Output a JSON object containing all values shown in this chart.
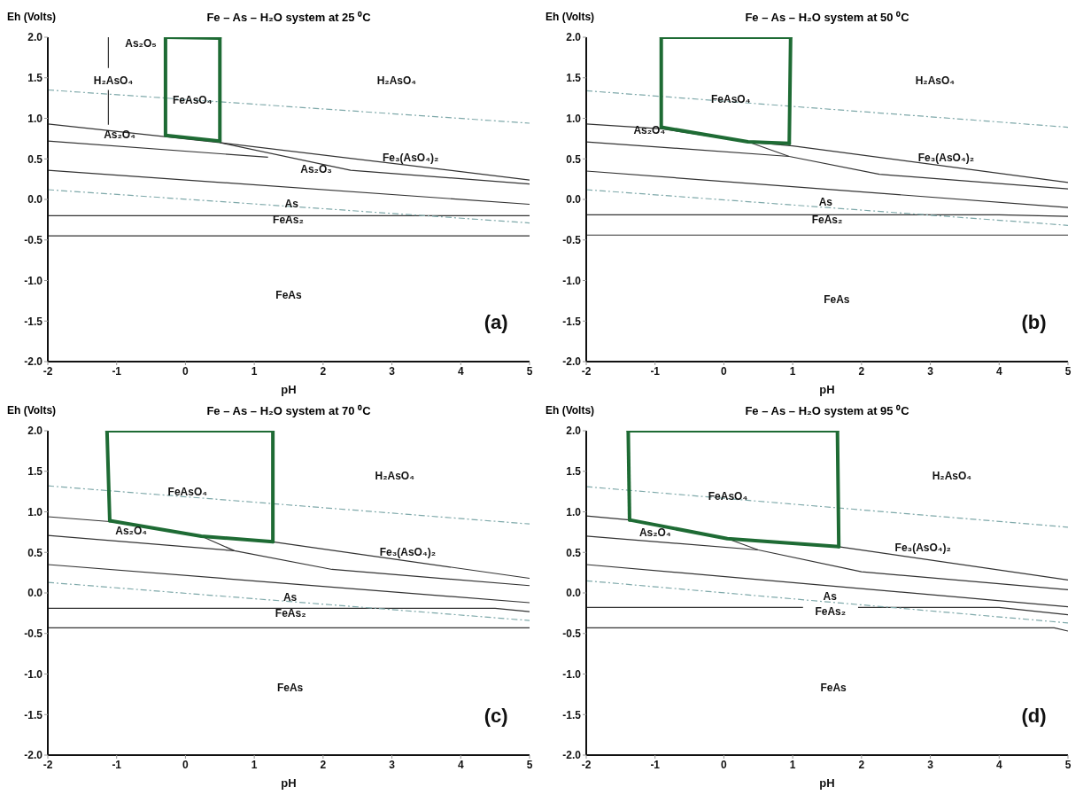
{
  "chart_data": [
    {
      "type": "line",
      "title": "Fe – As – H₂O system at 25 ⁰C",
      "xlabel": "pH",
      "ylabel": "Eh (Volts)",
      "xlim": [
        -2,
        5
      ],
      "ylim": [
        -2,
        2
      ],
      "xticks": [
        -2,
        -1,
        0,
        1,
        2,
        3,
        4,
        5
      ],
      "yticks": [
        {
          "value": -2,
          "label": "-2.0"
        },
        {
          "value": -1.5,
          "label": "-1.5"
        },
        {
          "value": -1,
          "label": "-1.0"
        },
        {
          "value": -0.5,
          "label": "-0.5"
        },
        {
          "value": 0,
          "label": "0.0"
        },
        {
          "value": 0.5,
          "label": "0.5"
        },
        {
          "value": 1,
          "label": "1.0"
        },
        {
          "value": 1.5,
          "label": "1.5"
        },
        {
          "value": 2,
          "label": "2.0"
        }
      ],
      "marker": "none",
      "series": [
        {
          "color": "#333333",
          "line_style": "solid",
          "x": [
            -2,
            0.5,
            5
          ],
          "values": [
            0.93,
            0.7,
            0.24
          ]
        },
        {
          "color": "#333333",
          "line_style": "solid",
          "x": [
            -2,
            1.2
          ],
          "values": [
            0.72,
            0.52
          ]
        },
        {
          "color": "#333333",
          "line_style": "solid",
          "x": [
            0.5,
            2.4,
            5
          ],
          "values": [
            0.7,
            0.36,
            0.19
          ]
        },
        {
          "color": "#333333",
          "line_style": "solid",
          "x": [
            -2,
            5
          ],
          "values": [
            0.36,
            -0.06
          ]
        },
        {
          "color": "#333333",
          "line_style": "solid",
          "x": [
            -2,
            5
          ],
          "values": [
            -0.2,
            -0.2
          ]
        },
        {
          "color": "#333333",
          "line_style": "solid",
          "x": [
            -2,
            5
          ],
          "values": [
            -0.45,
            -0.45
          ]
        },
        {
          "color": "#333333",
          "line_style": "solid",
          "x": [
            -1.12,
            -1.12
          ],
          "values": [
            2.0,
            1.62
          ]
        },
        {
          "color": "#333333",
          "line_style": "solid",
          "x": [
            -1.12,
            -1.12
          ],
          "values": [
            1.35,
            0.92
          ]
        },
        {
          "color": "#7fa9aa",
          "line_style": "dashed",
          "x": [
            -2,
            5
          ],
          "values": [
            0.12,
            -0.29
          ]
        },
        {
          "color": "#7fa9aa",
          "line_style": "dashed",
          "x": [
            -2,
            5
          ],
          "values": [
            1.35,
            0.94
          ]
        },
        {
          "color": "#1e6b34",
          "line_style": "solid",
          "x": [
            -0.29,
            0.5
          ],
          "values": [
            2.0,
            1.99
          ]
        },
        {
          "color": "#1e6b34",
          "line_style": "solid",
          "x": [
            0.5,
            0.5
          ],
          "values": [
            1.99,
            0.72
          ]
        },
        {
          "color": "#1e6b34",
          "line_style": "solid",
          "x": [
            -0.29,
            0.5
          ],
          "values": [
            0.79,
            0.72
          ]
        },
        {
          "color": "#1e6b34",
          "line_style": "solid",
          "x": [
            -0.29,
            -0.29
          ],
          "values": [
            0.79,
            2.0
          ]
        }
      ],
      "annotations": [
        "As₂O₅",
        "H₂AsO₄",
        "FeAsO₄",
        "H₂AsO₄",
        "As₂O₄",
        "As₂O₃",
        "Fe₃(AsO₄)₂",
        "As",
        "FeAs₂",
        "FeAs",
        "(a)"
      ]
    },
    {
      "type": "line",
      "title": "Fe – As – H₂O system at 50 ⁰C",
      "xlabel": "pH",
      "ylabel": "Eh (Volts)",
      "xlim": [
        -2,
        5
      ],
      "ylim": [
        -2,
        2
      ],
      "xticks": [
        -2,
        -1,
        0,
        1,
        2,
        3,
        4,
        5
      ],
      "yticks": [
        {
          "value": -2,
          "label": "-2.0"
        },
        {
          "value": -1.5,
          "label": "-1.5"
        },
        {
          "value": -1,
          "label": "-1.0"
        },
        {
          "value": -0.5,
          "label": "-0.5"
        },
        {
          "value": 0,
          "label": "0.0"
        },
        {
          "value": 0.5,
          "label": "0.5"
        },
        {
          "value": 1,
          "label": "1.0"
        },
        {
          "value": 1.5,
          "label": "1.5"
        },
        {
          "value": 2,
          "label": "2.0"
        }
      ],
      "marker": "none",
      "series": [
        {
          "color": "#333333",
          "line_style": "solid",
          "x": [
            -2,
            -0.9,
            0.35,
            1.0,
            5
          ],
          "values": [
            0.93,
            0.87,
            0.71,
            0.66,
            0.21
          ]
        },
        {
          "color": "#333333",
          "line_style": "solid",
          "x": [
            -2,
            0.95
          ],
          "values": [
            0.71,
            0.53
          ]
        },
        {
          "color": "#333333",
          "line_style": "solid",
          "x": [
            0.35,
            0.95,
            2.26,
            5
          ],
          "values": [
            0.71,
            0.53,
            0.31,
            0.13
          ]
        },
        {
          "color": "#333333",
          "line_style": "solid",
          "x": [
            -2,
            5
          ],
          "values": [
            0.35,
            -0.1
          ]
        },
        {
          "color": "#333333",
          "line_style": "solid",
          "x": [
            -2,
            4,
            5
          ],
          "values": [
            -0.19,
            -0.19,
            -0.21
          ]
        },
        {
          "color": "#333333",
          "line_style": "solid",
          "x": [
            -2,
            5
          ],
          "values": [
            -0.44,
            -0.44
          ]
        },
        {
          "color": "#7fa9aa",
          "line_style": "dashed",
          "x": [
            -2,
            5
          ],
          "values": [
            0.12,
            -0.32
          ]
        },
        {
          "color": "#7fa9aa",
          "line_style": "dashed",
          "x": [
            -2,
            5
          ],
          "values": [
            1.34,
            0.89
          ]
        },
        {
          "color": "#1e6b34",
          "line_style": "solid",
          "x": [
            -0.91,
            0.97
          ],
          "values": [
            2.0,
            2.0
          ]
        },
        {
          "color": "#1e6b34",
          "line_style": "solid",
          "x": [
            0.95,
            0.97
          ],
          "values": [
            0.69,
            2.0
          ]
        },
        {
          "color": "#1e6b34",
          "line_style": "solid",
          "x": [
            -0.91,
            0.35,
            0.95
          ],
          "values": [
            0.89,
            0.71,
            0.69
          ]
        },
        {
          "color": "#1e6b34",
          "line_style": "solid",
          "x": [
            -0.91,
            -0.91
          ],
          "values": [
            0.89,
            2.0
          ]
        }
      ],
      "annotations": [
        "FeAsO₄",
        "H₂AsO₄",
        "As₂O₄",
        "Fe₃(AsO₄)₂",
        "As",
        "FeAs₂",
        "FeAs",
        "(b)"
      ]
    },
    {
      "type": "line",
      "title": "Fe – As – H₂O system at 70 ⁰C",
      "xlabel": "pH",
      "ylabel": "Eh (Volts)",
      "xlim": [
        -2,
        5
      ],
      "ylim": [
        -2,
        2
      ],
      "xticks": [
        -2,
        -1,
        0,
        1,
        2,
        3,
        4,
        5
      ],
      "yticks": [
        {
          "value": -2,
          "label": "-2.0"
        },
        {
          "value": -1.5,
          "label": "-1.5"
        },
        {
          "value": -1,
          "label": "-1.0"
        },
        {
          "value": -0.5,
          "label": "-0.5"
        },
        {
          "value": 0,
          "label": "0.0"
        },
        {
          "value": 0.5,
          "label": "0.5"
        },
        {
          "value": 1,
          "label": "1.0"
        },
        {
          "value": 1.5,
          "label": "1.5"
        },
        {
          "value": 2,
          "label": "2.0"
        }
      ],
      "marker": "none",
      "series": [
        {
          "color": "#333333",
          "line_style": "solid",
          "x": [
            -2,
            -1.1,
            0.23,
            1.27,
            5
          ],
          "values": [
            0.94,
            0.88,
            0.7,
            0.63,
            0.18
          ]
        },
        {
          "color": "#333333",
          "line_style": "solid",
          "x": [
            -2,
            0.71
          ],
          "values": [
            0.71,
            0.52
          ]
        },
        {
          "color": "#333333",
          "line_style": "solid",
          "x": [
            0.23,
            0.71,
            2.13,
            5
          ],
          "values": [
            0.7,
            0.52,
            0.29,
            0.09
          ]
        },
        {
          "color": "#333333",
          "line_style": "solid",
          "x": [
            -2,
            5
          ],
          "values": [
            0.35,
            -0.12
          ]
        },
        {
          "color": "#333333",
          "line_style": "solid",
          "x": [
            -2,
            4.5,
            5
          ],
          "values": [
            -0.19,
            -0.19,
            -0.23
          ]
        },
        {
          "color": "#333333",
          "line_style": "solid",
          "x": [
            -2,
            5
          ],
          "values": [
            -0.43,
            -0.43
          ]
        },
        {
          "color": "#7fa9aa",
          "line_style": "dashed",
          "x": [
            -2,
            5
          ],
          "values": [
            0.13,
            -0.34
          ]
        },
        {
          "color": "#7fa9aa",
          "line_style": "dashed",
          "x": [
            -2,
            5
          ],
          "values": [
            1.32,
            0.85
          ]
        },
        {
          "color": "#1e6b34",
          "line_style": "solid",
          "x": [
            -1.14,
            1.27
          ],
          "values": [
            2.0,
            2.0
          ]
        },
        {
          "color": "#1e6b34",
          "line_style": "solid",
          "x": [
            1.27,
            1.27
          ],
          "values": [
            2.0,
            0.63
          ]
        },
        {
          "color": "#1e6b34",
          "line_style": "solid",
          "x": [
            -1.1,
            0.23,
            1.27
          ],
          "values": [
            0.89,
            0.7,
            0.63
          ]
        },
        {
          "color": "#1e6b34",
          "line_style": "solid",
          "x": [
            -1.14,
            -1.1
          ],
          "values": [
            2.0,
            0.89
          ]
        }
      ],
      "annotations": [
        "FeAsO₄",
        "H₂AsO₄",
        "As₂O₄",
        "Fe₃(AsO₄)₂",
        "As",
        "FeAs₂",
        "FeAs",
        "(c)"
      ]
    },
    {
      "type": "line",
      "title": "Fe – As – H₂O system at 95 ⁰C",
      "xlabel": "pH",
      "ylabel": "Eh (Volts)",
      "xlim": [
        -2,
        5
      ],
      "ylim": [
        -2,
        2
      ],
      "xticks": [
        -2,
        -1,
        0,
        1,
        2,
        3,
        4,
        5
      ],
      "yticks": [
        {
          "value": -2,
          "label": "-2.0"
        },
        {
          "value": -1.5,
          "label": "-1.5"
        },
        {
          "value": -1,
          "label": "-1.0"
        },
        {
          "value": -0.5,
          "label": "-0.5"
        },
        {
          "value": 0,
          "label": "0.0"
        },
        {
          "value": 0.5,
          "label": "0.5"
        },
        {
          "value": 1,
          "label": "1.0"
        },
        {
          "value": 1.5,
          "label": "1.5"
        },
        {
          "value": 2,
          "label": "2.0"
        }
      ],
      "marker": "none",
      "series": [
        {
          "color": "#333333",
          "line_style": "solid",
          "x": [
            -2,
            -1.37,
            0.05,
            1.67,
            5
          ],
          "values": [
            0.95,
            0.9,
            0.67,
            0.57,
            0.16
          ]
        },
        {
          "color": "#333333",
          "line_style": "solid",
          "x": [
            -2,
            0.5
          ],
          "values": [
            0.7,
            0.53
          ]
        },
        {
          "color": "#333333",
          "line_style": "solid",
          "x": [
            0.05,
            0.5,
            2.0,
            5
          ],
          "values": [
            0.67,
            0.53,
            0.26,
            0.04
          ]
        },
        {
          "color": "#333333",
          "line_style": "solid",
          "x": [
            -2,
            5
          ],
          "values": [
            0.35,
            -0.17
          ]
        },
        {
          "color": "#333333",
          "line_style": "solid",
          "x": [
            -2,
            1.15
          ],
          "values": [
            -0.18,
            -0.18
          ]
        },
        {
          "color": "#333333",
          "line_style": "solid",
          "x": [
            1.95,
            4,
            5
          ],
          "values": [
            -0.18,
            -0.18,
            -0.27
          ]
        },
        {
          "color": "#333333",
          "line_style": "solid",
          "x": [
            -2,
            4.8,
            5
          ],
          "values": [
            -0.43,
            -0.43,
            -0.47
          ]
        },
        {
          "color": "#7fa9aa",
          "line_style": "dashed",
          "x": [
            -2,
            5
          ],
          "values": [
            0.15,
            -0.37
          ]
        },
        {
          "color": "#7fa9aa",
          "line_style": "dashed",
          "x": [
            -2,
            5
          ],
          "values": [
            1.31,
            0.81
          ]
        },
        {
          "color": "#1e6b34",
          "line_style": "solid",
          "x": [
            -1.39,
            1.65
          ],
          "values": [
            2.0,
            2.0
          ]
        },
        {
          "color": "#1e6b34",
          "line_style": "solid",
          "x": [
            1.65,
            1.67
          ],
          "values": [
            2.0,
            0.57
          ]
        },
        {
          "color": "#1e6b34",
          "line_style": "solid",
          "x": [
            -1.37,
            0.05,
            1.67
          ],
          "values": [
            0.9,
            0.67,
            0.57
          ]
        },
        {
          "color": "#1e6b34",
          "line_style": "solid",
          "x": [
            -1.39,
            -1.37
          ],
          "values": [
            2.0,
            0.9
          ]
        }
      ],
      "annotations": [
        "FeAsO₄",
        "H₂AsO₄",
        "As₂O₄",
        "Fe₃(AsO₄)₂",
        "As",
        "FeAs₂",
        "FeAs",
        "(d)"
      ]
    }
  ]
}
